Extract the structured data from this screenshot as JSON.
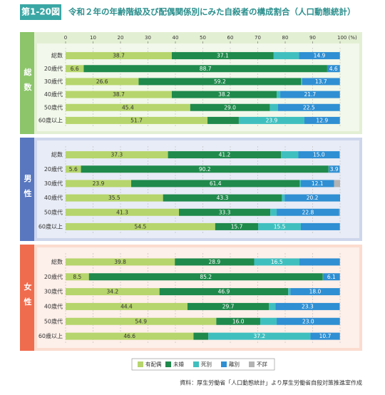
{
  "header": {
    "figure_no": "第1-20図",
    "title": "令和２年の年齢階級及び配偶関係別にみた自殺者の構成割合（人口動態統計）"
  },
  "source": "資料：厚生労働省「人口動態統計」より厚生労働省自殺対策推進室作成",
  "chart_data": [
    {
      "type": "bar",
      "orientation": "horizontal",
      "stacked": true,
      "title": "総数",
      "strip_color": "#8cc56a",
      "panel_color": "#e3efd3",
      "categories": [
        "総数",
        "20歳代",
        "30歳代",
        "40歳代",
        "50歳代",
        "60歳以上"
      ],
      "xlim": [
        0,
        100
      ],
      "xticks": [
        0,
        10,
        20,
        30,
        40,
        50,
        60,
        70,
        80,
        90,
        {
          "value": 100,
          "label": "100 (%)"
        }
      ],
      "grid": true,
      "series": [
        {
          "name": "有配偶",
          "color": "#b6d56c",
          "values": [
            38.7,
            6.6,
            26.6,
            38.7,
            45.4,
            51.7
          ],
          "value_labels": [
            "38.7",
            "6.6",
            "26.6",
            "38.7",
            "45.4",
            "51.7"
          ]
        },
        {
          "name": "未婚",
          "color": "#1f8a4c",
          "values": [
            37.1,
            88.7,
            59.2,
            38.2,
            29.0,
            11.4
          ],
          "value_labels": [
            "37.1",
            "88.7",
            "59.2",
            "38.2",
            "29.0",
            null
          ]
        },
        {
          "name": "死別",
          "color": "#40bfbf",
          "values": [
            9.2,
            0.0,
            0.4,
            1.3,
            3.0,
            23.9
          ],
          "value_labels": [
            null,
            null,
            null,
            null,
            null,
            "23.9"
          ]
        },
        {
          "name": "離別",
          "color": "#2f8fd2",
          "values": [
            14.9,
            4.6,
            13.7,
            21.7,
            22.5,
            12.9
          ],
          "value_labels": [
            "14.9",
            "4.6",
            "13.7",
            "21.7",
            "22.5",
            "12.9"
          ]
        },
        {
          "name": "不詳",
          "color": "#b3b3b3",
          "values": [
            0.1,
            0.1,
            0.1,
            0.1,
            0.1,
            0.1
          ],
          "value_labels": [
            null,
            null,
            null,
            null,
            null,
            null
          ]
        }
      ]
    },
    {
      "type": "bar",
      "orientation": "horizontal",
      "stacked": true,
      "title": "男性",
      "strip_color": "#5877bf",
      "panel_color": "#cdd6ec",
      "categories": [
        "総数",
        "20歳代",
        "30歳代",
        "40歳代",
        "50歳代",
        "60歳以上"
      ],
      "xlim": [
        0,
        100
      ],
      "grid": true,
      "series": [
        {
          "name": "有配偶",
          "color": "#b6d56c",
          "values": [
            37.3,
            5.6,
            23.9,
            35.5,
            41.3,
            54.5
          ],
          "value_labels": [
            "37.3",
            "5.6",
            "23.9",
            "35.5",
            "41.3",
            "54.5"
          ]
        },
        {
          "name": "未婚",
          "color": "#1f8a4c",
          "values": [
            41.2,
            90.2,
            61.4,
            43.3,
            33.3,
            15.7
          ],
          "value_labels": [
            "41.2",
            "90.2",
            "61.4",
            "43.3",
            "33.3",
            "15.7"
          ]
        },
        {
          "name": "死別",
          "color": "#40bfbf",
          "values": [
            6.3,
            0.1,
            0.4,
            1.0,
            2.3,
            15.5
          ],
          "value_labels": [
            null,
            null,
            null,
            null,
            null,
            "15.5"
          ]
        },
        {
          "name": "離別",
          "color": "#2f8fd2",
          "values": [
            15.0,
            3.9,
            12.1,
            20.2,
            22.8,
            14.2
          ],
          "value_labels": [
            "15.0",
            "3.9",
            "12.1",
            "20.2",
            "22.8",
            null
          ]
        },
        {
          "name": "不詳",
          "color": "#b3b3b3",
          "values": [
            0.2,
            0.2,
            2.2,
            0.0,
            0.3,
            0.1
          ],
          "value_labels": [
            null,
            null,
            null,
            null,
            null,
            null
          ]
        }
      ]
    },
    {
      "type": "bar",
      "orientation": "horizontal",
      "stacked": true,
      "title": "女性",
      "strip_color": "#f06c4e",
      "panel_color": "#fbdccf",
      "categories": [
        "総数",
        "20歳代",
        "30歳代",
        "40歳代",
        "50歳代",
        "60歳以上"
      ],
      "xlim": [
        0,
        100
      ],
      "grid": true,
      "series": [
        {
          "name": "有配偶",
          "color": "#b6d56c",
          "values": [
            39.8,
            8.5,
            34.2,
            44.4,
            54.9,
            46.6
          ],
          "value_labels": [
            "39.8",
            "8.5",
            "34.2",
            "44.4",
            "54.9",
            "46.6"
          ]
        },
        {
          "name": "未婚",
          "color": "#1f8a4c",
          "values": [
            28.9,
            85.2,
            46.9,
            29.7,
            16.0,
            5.4
          ],
          "value_labels": [
            "28.9",
            "85.2",
            "46.9",
            "29.7",
            "16.0",
            null
          ]
        },
        {
          "name": "死別",
          "color": "#40bfbf",
          "values": [
            16.5,
            0.1,
            0.8,
            2.4,
            6.0,
            37.2
          ],
          "value_labels": [
            "16.5",
            null,
            null,
            null,
            null,
            "37.2"
          ]
        },
        {
          "name": "離別",
          "color": "#2f8fd2",
          "values": [
            14.7,
            6.1,
            18.0,
            23.3,
            23.0,
            10.7
          ],
          "value_labels": [
            null,
            "6.1",
            "18.0",
            "23.3",
            "23.0",
            "10.7"
          ]
        },
        {
          "name": "不詳",
          "color": "#b3b3b3",
          "values": [
            0.1,
            0.1,
            0.1,
            0.2,
            0.1,
            0.1
          ],
          "value_labels": [
            null,
            null,
            null,
            null,
            null,
            null
          ]
        }
      ]
    }
  ]
}
